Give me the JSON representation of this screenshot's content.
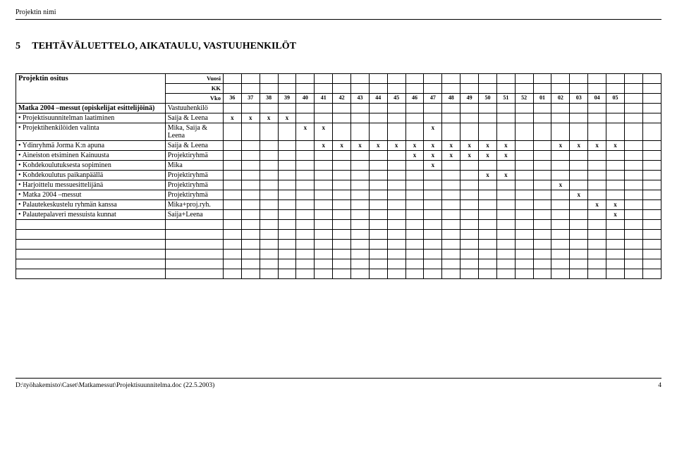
{
  "header": {
    "project_name": "Projektin nimi"
  },
  "section": {
    "number": "5",
    "title": "TEHTÄVÄLUETTELO, AIKATAULU, VASTUUHENKILÖT"
  },
  "table": {
    "osit_label": "Projektin ositus",
    "year_label": "Vuosi",
    "month_label": "KK",
    "week_label": "Vko",
    "weeks": [
      "36",
      "37",
      "38",
      "39",
      "40",
      "41",
      "42",
      "43",
      "44",
      "45",
      "46",
      "47",
      "48",
      "49",
      "50",
      "51",
      "52",
      "01",
      "02",
      "03",
      "04",
      "05",
      "",
      ""
    ],
    "group": {
      "title": "Matka 2004 –messut (opiskelijat esittelijöinä)",
      "responsible": "Vastuuhenkilö"
    },
    "rows": [
      {
        "task": "Projektisuunnitelman laatiminen",
        "resp": "Saija & Leena",
        "marks": [
          "x",
          "x",
          "x",
          "x",
          "",
          "",
          "",
          "",
          "",
          "",
          "",
          "",
          "",
          "",
          "",
          "",
          "",
          "",
          "",
          "",
          "",
          "",
          "",
          ""
        ]
      },
      {
        "task": "Projektihenkilöiden valinta",
        "resp": "Mika, Saija & Leena",
        "marks": [
          "",
          "",
          "",
          "",
          "x",
          "x",
          "",
          "",
          "",
          "",
          "",
          "x",
          "",
          "",
          "",
          "",
          "",
          "",
          "",
          "",
          "",
          "",
          "",
          ""
        ]
      },
      {
        "task": "Ydinryhmä Jorma K:n apuna",
        "resp": "Saija & Leena",
        "marks": [
          "",
          "",
          "",
          "",
          "",
          "x",
          "x",
          "x",
          "x",
          "x",
          "x",
          "x",
          "x",
          "x",
          "x",
          "x",
          "",
          "",
          "x",
          "x",
          "x",
          "x",
          "",
          ""
        ]
      },
      {
        "task": "Aineiston etsiminen Kainuusta",
        "resp": "Projektiryhmä",
        "marks": [
          "",
          "",
          "",
          "",
          "",
          "",
          "",
          "",
          "",
          "",
          "x",
          "x",
          "x",
          "x",
          "x",
          "x",
          "",
          "",
          "",
          "",
          "",
          "",
          "",
          ""
        ]
      },
      {
        "task": "Kohdekoulutuksesta sopiminen",
        "resp": "Mika",
        "marks": [
          "",
          "",
          "",
          "",
          "",
          "",
          "",
          "",
          "",
          "",
          "",
          "x",
          "",
          "",
          "",
          "",
          "",
          "",
          "",
          "",
          "",
          "",
          "",
          ""
        ]
      },
      {
        "task": "Kohdekoulutus paikanpäällä",
        "resp": "Projektiryhmä",
        "marks": [
          "",
          "",
          "",
          "",
          "",
          "",
          "",
          "",
          "",
          "",
          "",
          "",
          "",
          "",
          "x",
          "x",
          "",
          "",
          "",
          "",
          "",
          "",
          "",
          ""
        ]
      },
      {
        "task": "Harjoittelu messuesittelijänä",
        "resp": "Projektiryhmä",
        "marks": [
          "",
          "",
          "",
          "",
          "",
          "",
          "",
          "",
          "",
          "",
          "",
          "",
          "",
          "",
          "",
          "",
          "",
          "",
          "x",
          "",
          "",
          "",
          "",
          ""
        ]
      },
      {
        "task": "Matka 2004 –messut",
        "resp": "Projektiryhmä",
        "marks": [
          "",
          "",
          "",
          "",
          "",
          "",
          "",
          "",
          "",
          "",
          "",
          "",
          "",
          "",
          "",
          "",
          "",
          "",
          "",
          "x",
          "",
          "",
          "",
          ""
        ]
      },
      {
        "task": "Palautekeskustelu ryhmän kanssa",
        "resp": "Mika+proj.ryh.",
        "marks": [
          "",
          "",
          "",
          "",
          "",
          "",
          "",
          "",
          "",
          "",
          "",
          "",
          "",
          "",
          "",
          "",
          "",
          "",
          "",
          "",
          "x",
          "x",
          "",
          ""
        ]
      },
      {
        "task": "Palautepalaveri messuista kunnat",
        "resp": "Saija+Leena",
        "marks": [
          "",
          "",
          "",
          "",
          "",
          "",
          "",
          "",
          "",
          "",
          "",
          "",
          "",
          "",
          "",
          "",
          "",
          "",
          "",
          "",
          "",
          "x",
          "",
          ""
        ]
      }
    ],
    "empty_rows": 6
  },
  "footer": {
    "path": "D:\\työhakemisto\\Caset\\Matkamessut\\Projektisuunnitelma.doc  (22.5.2003)",
    "page": "4"
  },
  "style": {
    "mark_glyph": "x"
  }
}
